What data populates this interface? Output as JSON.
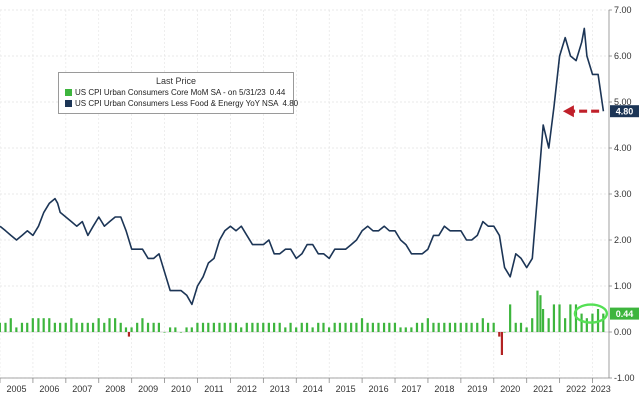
{
  "legend": {
    "title": "Last Price",
    "items": [
      {
        "label": "US CPI Urban Consumers Core MoM SA - on 5/31/23",
        "value": "0.44",
        "color": "#3db53d"
      },
      {
        "label": "US CPI Urban Consumers Less Food & Energy YoY NSA",
        "value": "4.80",
        "color": "#1c3556"
      }
    ]
  },
  "chart_data": {
    "type": "line",
    "title": "",
    "xlabel": "",
    "ylabel": "",
    "xlim": [
      2005.0,
      2023.5
    ],
    "ylim": [
      -1.0,
      7.0
    ],
    "y_axis_position": "right",
    "yticks": [
      "-1.00",
      "0.00",
      "1.00",
      "2.00",
      "3.00",
      "4.00",
      "5.00",
      "6.00",
      "7.00"
    ],
    "x_tick_labels": [
      "2005",
      "2006",
      "2007",
      "2008",
      "2009",
      "2010",
      "2011",
      "2012",
      "2013",
      "2014",
      "2015",
      "2016",
      "2017",
      "2018",
      "2019",
      "2020",
      "2021",
      "2022",
      "2023"
    ],
    "grid": true,
    "legend_position": "top-left",
    "series": [
      {
        "name": "US CPI Urban Consumers Less Food & Energy YoY NSA",
        "type": "line",
        "color": "#1c3556",
        "x": [
          2005.0,
          2005.17,
          2005.33,
          2005.5,
          2005.67,
          2005.83,
          2006.0,
          2006.17,
          2006.33,
          2006.5,
          2006.67,
          2006.75,
          2006.83,
          2007.0,
          2007.17,
          2007.33,
          2007.5,
          2007.67,
          2007.83,
          2008.0,
          2008.17,
          2008.33,
          2008.5,
          2008.67,
          2008.83,
          2009.0,
          2009.17,
          2009.33,
          2009.5,
          2009.67,
          2009.83,
          2010.0,
          2010.17,
          2010.33,
          2010.5,
          2010.67,
          2010.83,
          2011.0,
          2011.17,
          2011.33,
          2011.5,
          2011.67,
          2011.83,
          2012.0,
          2012.17,
          2012.33,
          2012.5,
          2012.67,
          2012.83,
          2013.0,
          2013.17,
          2013.33,
          2013.5,
          2013.67,
          2013.83,
          2014.0,
          2014.17,
          2014.33,
          2014.5,
          2014.67,
          2014.83,
          2015.0,
          2015.17,
          2015.33,
          2015.5,
          2015.67,
          2015.83,
          2016.0,
          2016.17,
          2016.33,
          2016.5,
          2016.67,
          2016.83,
          2017.0,
          2017.17,
          2017.33,
          2017.5,
          2017.67,
          2017.83,
          2018.0,
          2018.17,
          2018.33,
          2018.5,
          2018.67,
          2018.83,
          2019.0,
          2019.17,
          2019.33,
          2019.5,
          2019.67,
          2019.83,
          2020.0,
          2020.17,
          2020.33,
          2020.5,
          2020.67,
          2020.83,
          2021.0,
          2021.17,
          2021.33,
          2021.5,
          2021.67,
          2021.83,
          2022.0,
          2022.17,
          2022.33,
          2022.5,
          2022.67,
          2022.75,
          2022.83,
          2023.0,
          2023.17,
          2023.33
        ],
        "values": [
          2.3,
          2.2,
          2.1,
          2.0,
          2.1,
          2.2,
          2.1,
          2.3,
          2.6,
          2.8,
          2.9,
          2.8,
          2.6,
          2.5,
          2.4,
          2.3,
          2.4,
          2.1,
          2.3,
          2.5,
          2.3,
          2.4,
          2.5,
          2.5,
          2.2,
          1.8,
          1.8,
          1.8,
          1.6,
          1.6,
          1.7,
          1.3,
          0.9,
          0.9,
          0.9,
          0.8,
          0.6,
          1.0,
          1.2,
          1.5,
          1.6,
          2.0,
          2.2,
          2.3,
          2.2,
          2.3,
          2.1,
          1.9,
          1.9,
          1.9,
          2.0,
          1.7,
          1.7,
          1.8,
          1.8,
          1.6,
          1.7,
          1.9,
          1.9,
          1.7,
          1.7,
          1.6,
          1.8,
          1.8,
          1.8,
          1.9,
          2.0,
          2.2,
          2.3,
          2.2,
          2.2,
          2.3,
          2.2,
          2.2,
          2.0,
          1.9,
          1.7,
          1.7,
          1.7,
          1.8,
          2.1,
          2.1,
          2.3,
          2.2,
          2.2,
          2.2,
          2.0,
          2.0,
          2.1,
          2.4,
          2.3,
          2.3,
          2.1,
          1.4,
          1.2,
          1.7,
          1.6,
          1.4,
          1.6,
          3.0,
          4.5,
          4.0,
          4.9,
          6.0,
          6.4,
          6.0,
          5.9,
          6.3,
          6.6,
          6.0,
          5.6,
          5.6,
          4.8
        ]
      },
      {
        "name": "US CPI Urban Consumers Core MoM SA",
        "type": "bar",
        "color": "#3db53d",
        "x": [
          2005.0,
          2005.17,
          2005.33,
          2005.5,
          2005.67,
          2005.83,
          2006.0,
          2006.17,
          2006.33,
          2006.5,
          2006.67,
          2006.83,
          2007.0,
          2007.17,
          2007.33,
          2007.5,
          2007.67,
          2007.83,
          2008.0,
          2008.17,
          2008.33,
          2008.5,
          2008.67,
          2008.83,
          2008.92,
          2009.0,
          2009.17,
          2009.33,
          2009.5,
          2009.67,
          2009.83,
          2010.0,
          2010.17,
          2010.33,
          2010.5,
          2010.67,
          2010.83,
          2011.0,
          2011.17,
          2011.33,
          2011.5,
          2011.67,
          2011.83,
          2012.0,
          2012.17,
          2012.33,
          2012.5,
          2012.67,
          2012.83,
          2013.0,
          2013.17,
          2013.33,
          2013.5,
          2013.67,
          2013.83,
          2014.0,
          2014.17,
          2014.33,
          2014.5,
          2014.67,
          2014.83,
          2015.0,
          2015.17,
          2015.33,
          2015.5,
          2015.67,
          2015.83,
          2016.0,
          2016.17,
          2016.33,
          2016.5,
          2016.67,
          2016.83,
          2017.0,
          2017.17,
          2017.33,
          2017.5,
          2017.67,
          2017.83,
          2018.0,
          2018.17,
          2018.33,
          2018.5,
          2018.67,
          2018.83,
          2019.0,
          2019.17,
          2019.33,
          2019.5,
          2019.67,
          2019.83,
          2020.0,
          2020.17,
          2020.25,
          2020.33,
          2020.5,
          2020.67,
          2020.83,
          2021.0,
          2021.17,
          2021.33,
          2021.42,
          2021.5,
          2021.67,
          2021.83,
          2022.0,
          2022.17,
          2022.33,
          2022.5,
          2022.67,
          2022.83,
          2023.0,
          2023.17,
          2023.33
        ],
        "values": [
          0.2,
          0.2,
          0.3,
          0.1,
          0.2,
          0.2,
          0.3,
          0.3,
          0.3,
          0.3,
          0.2,
          0.2,
          0.2,
          0.3,
          0.2,
          0.2,
          0.2,
          0.2,
          0.3,
          0.2,
          0.3,
          0.3,
          0.2,
          0.1,
          -0.1,
          0.1,
          0.2,
          0.3,
          0.2,
          0.2,
          0.2,
          0.0,
          0.1,
          0.1,
          0.0,
          0.1,
          0.1,
          0.2,
          0.2,
          0.2,
          0.2,
          0.2,
          0.2,
          0.2,
          0.2,
          0.1,
          0.2,
          0.2,
          0.2,
          0.2,
          0.2,
          0.2,
          0.2,
          0.1,
          0.2,
          0.1,
          0.2,
          0.2,
          0.1,
          0.2,
          0.2,
          0.1,
          0.2,
          0.2,
          0.2,
          0.2,
          0.2,
          0.3,
          0.2,
          0.2,
          0.2,
          0.2,
          0.2,
          0.2,
          0.1,
          0.1,
          0.1,
          0.2,
          0.2,
          0.3,
          0.2,
          0.2,
          0.2,
          0.2,
          0.2,
          0.2,
          0.2,
          0.2,
          0.2,
          0.3,
          0.2,
          0.2,
          -0.1,
          -0.5,
          0.0,
          0.6,
          0.2,
          0.2,
          0.1,
          0.3,
          0.9,
          0.8,
          0.5,
          0.3,
          0.6,
          0.6,
          0.3,
          0.6,
          0.6,
          0.4,
          0.3,
          0.4,
          0.5,
          0.4
        ]
      }
    ],
    "last_value_labels": [
      {
        "value": "4.80",
        "color": "#1c3556"
      },
      {
        "value": "0.44",
        "color": "#3db53d"
      }
    ]
  }
}
